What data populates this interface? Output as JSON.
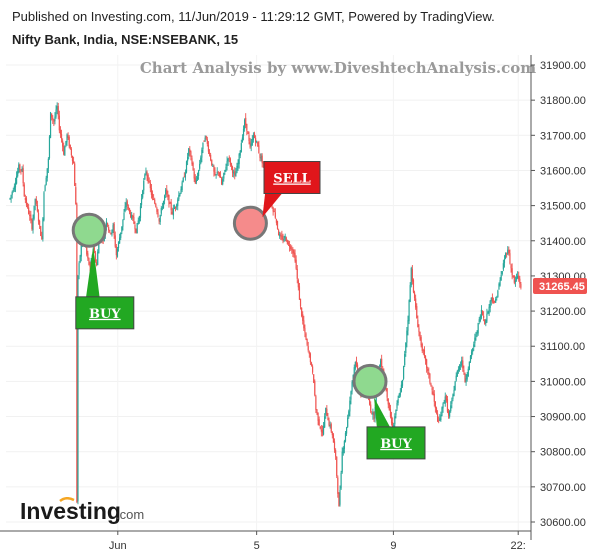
{
  "header": {
    "published": "Published on Investing.com, 11/Jun/2019 - 11:29:12 GMT, Powered by TradingView.",
    "symbol": "Nifty Bank, India, NSE:NSEBANK, 15"
  },
  "watermark": "Chart Analysis by www.DiveshtechAnalysis.com",
  "logo": {
    "main": "Investing",
    "sub": ".com"
  },
  "colors": {
    "up": "#26a69a",
    "down": "#ef5350",
    "buy": "#22a822",
    "sell": "#e0161b",
    "price_tag": "#ef5350"
  },
  "chart_data": {
    "type": "candlestick",
    "ylim": [
      30600,
      31900
    ],
    "y_ticks": [
      "31900.00",
      "31800.00",
      "31700.00",
      "31600.00",
      "31500.00",
      "31400.00",
      "31300.00",
      "31200.00",
      "31100.00",
      "31000.00",
      "30900.00",
      "30800.00",
      "30700.00",
      "30600.00"
    ],
    "x_ticks": [
      "Jun",
      "5",
      "9",
      "22:"
    ],
    "last_price": "31265.45",
    "path": [
      [
        0,
        31520
      ],
      [
        4,
        31560
      ],
      [
        8,
        31610
      ],
      [
        11,
        31600
      ],
      [
        13,
        31530
      ],
      [
        17,
        31480
      ],
      [
        20,
        31440
      ],
      [
        23,
        31520
      ],
      [
        26,
        31460
      ],
      [
        29,
        31400
      ],
      [
        31,
        31540
      ],
      [
        35,
        31630
      ],
      [
        37,
        31760
      ],
      [
        40,
        31740
      ],
      [
        43,
        31780
      ],
      [
        45,
        31720
      ],
      [
        47,
        31690
      ],
      [
        49,
        31650
      ],
      [
        52,
        31700
      ],
      [
        55,
        31660
      ],
      [
        58,
        31620
      ],
      [
        60,
        31500
      ],
      [
        61,
        30660
      ],
      [
        62,
        31300
      ],
      [
        64,
        31360
      ],
      [
        67,
        31430
      ],
      [
        70,
        31360
      ],
      [
        73,
        31320
      ],
      [
        76,
        31380
      ],
      [
        79,
        31330
      ],
      [
        82,
        31440
      ],
      [
        85,
        31400
      ],
      [
        88,
        31460
      ],
      [
        91,
        31420
      ],
      [
        94,
        31440
      ],
      [
        97,
        31360
      ],
      [
        100,
        31410
      ],
      [
        103,
        31460
      ],
      [
        106,
        31510
      ],
      [
        109,
        31480
      ],
      [
        112,
        31460
      ],
      [
        115,
        31430
      ],
      [
        118,
        31470
      ],
      [
        121,
        31550
      ],
      [
        124,
        31600
      ],
      [
        127,
        31560
      ],
      [
        130,
        31520
      ],
      [
        133,
        31500
      ],
      [
        136,
        31460
      ],
      [
        139,
        31500
      ],
      [
        142,
        31540
      ],
      [
        145,
        31510
      ],
      [
        148,
        31480
      ],
      [
        151,
        31500
      ],
      [
        154,
        31530
      ],
      [
        157,
        31560
      ],
      [
        160,
        31600
      ],
      [
        163,
        31660
      ],
      [
        166,
        31620
      ],
      [
        169,
        31560
      ],
      [
        172,
        31600
      ],
      [
        175,
        31660
      ],
      [
        178,
        31700
      ],
      [
        181,
        31660
      ],
      [
        184,
        31620
      ],
      [
        187,
        31580
      ],
      [
        190,
        31600
      ],
      [
        193,
        31560
      ],
      [
        196,
        31600
      ],
      [
        199,
        31640
      ],
      [
        202,
        31610
      ],
      [
        205,
        31580
      ],
      [
        208,
        31620
      ],
      [
        211,
        31680
      ],
      [
        214,
        31740
      ],
      [
        216,
        31720
      ],
      [
        219,
        31660
      ],
      [
        222,
        31700
      ],
      [
        225,
        31680
      ],
      [
        228,
        31640
      ],
      [
        231,
        31620
      ],
      [
        234,
        31560
      ],
      [
        237,
        31540
      ],
      [
        239,
        31500
      ],
      [
        242,
        31470
      ],
      [
        245,
        31420
      ],
      [
        248,
        31400
      ],
      [
        251,
        31410
      ],
      [
        254,
        31390
      ],
      [
        257,
        31380
      ],
      [
        260,
        31350
      ],
      [
        262,
        31290
      ],
      [
        265,
        31210
      ],
      [
        268,
        31150
      ],
      [
        271,
        31100
      ],
      [
        274,
        31060
      ],
      [
        277,
        31000
      ],
      [
        279,
        30920
      ],
      [
        282,
        30880
      ],
      [
        285,
        30850
      ],
      [
        288,
        30920
      ],
      [
        291,
        30880
      ],
      [
        294,
        30850
      ],
      [
        297,
        30780
      ],
      [
        300,
        30640
      ],
      [
        303,
        30800
      ],
      [
        306,
        30850
      ],
      [
        309,
        30920
      ],
      [
        312,
        31000
      ],
      [
        315,
        31060
      ],
      [
        318,
        31000
      ],
      [
        320,
        30960
      ],
      [
        323,
        30990
      ],
      [
        326,
        30960
      ],
      [
        329,
        30920
      ],
      [
        332,
        30900
      ],
      [
        335,
        31000
      ],
      [
        338,
        31060
      ],
      [
        341,
        31020
      ],
      [
        344,
        30960
      ],
      [
        347,
        30900
      ],
      [
        349,
        30860
      ],
      [
        352,
        30920
      ],
      [
        355,
        30960
      ],
      [
        358,
        31000
      ],
      [
        360,
        31080
      ],
      [
        363,
        31180
      ],
      [
        366,
        31320
      ],
      [
        368,
        31260
      ],
      [
        371,
        31180
      ],
      [
        374,
        31120
      ],
      [
        377,
        31080
      ],
      [
        380,
        31040
      ],
      [
        383,
        31000
      ],
      [
        386,
        30960
      ],
      [
        388,
        30920
      ],
      [
        391,
        30880
      ],
      [
        394,
        30920
      ],
      [
        397,
        30960
      ],
      [
        400,
        30900
      ],
      [
        403,
        30940
      ],
      [
        406,
        31000
      ],
      [
        409,
        31040
      ],
      [
        412,
        31060
      ],
      [
        415,
        31000
      ],
      [
        418,
        31040
      ],
      [
        421,
        31080
      ],
      [
        424,
        31120
      ],
      [
        427,
        31160
      ],
      [
        430,
        31200
      ],
      [
        433,
        31170
      ],
      [
        436,
        31200
      ],
      [
        439,
        31240
      ],
      [
        442,
        31220
      ],
      [
        445,
        31260
      ],
      [
        448,
        31300
      ],
      [
        451,
        31350
      ],
      [
        454,
        31380
      ],
      [
        457,
        31320
      ],
      [
        460,
        31280
      ],
      [
        463,
        31300
      ],
      [
        466,
        31270
      ]
    ],
    "annotations": [
      {
        "label": "BUY",
        "color": "buy",
        "circle_at": [
          31430,
          0.16
        ],
        "box_at": [
          31195,
          0.19
        ]
      },
      {
        "label": "SELL",
        "color": "sell",
        "circle_at": [
          31450,
          0.47
        ],
        "box_at": [
          31580,
          0.55
        ]
      },
      {
        "label": "BUY",
        "color": "buy",
        "circle_at": [
          31000,
          0.7
        ],
        "box_at": [
          30825,
          0.75
        ]
      }
    ]
  }
}
